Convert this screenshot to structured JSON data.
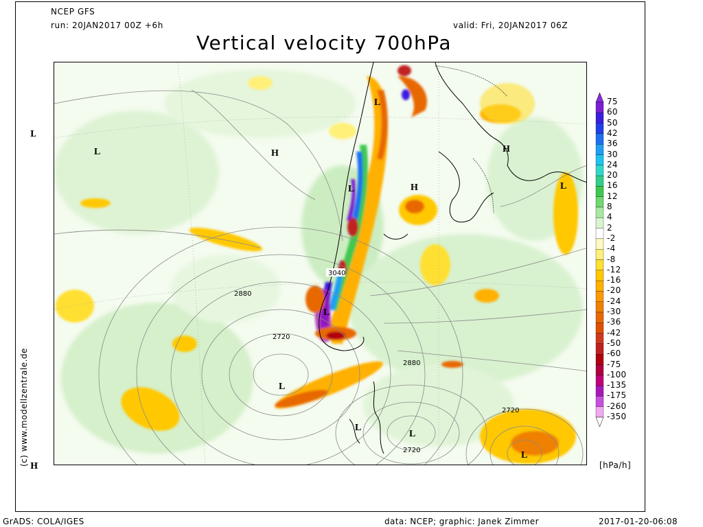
{
  "header": {
    "model": "NCEP GFS",
    "run": "run: 20JAN2017 00Z +6h",
    "valid": "valid: Fri, 20JAN2017 06Z",
    "title": "Vertical velocity 700hPa"
  },
  "vertical_credit": "(c) www.modellzentrale.de",
  "colorbar": {
    "unit": "[hPa/h]",
    "levels": [
      "75",
      "60",
      "50",
      "42",
      "36",
      "30",
      "24",
      "20",
      "16",
      "12",
      "8",
      "4",
      "2",
      "-2",
      "-4",
      "-8",
      "-12",
      "-16",
      "-20",
      "-24",
      "-30",
      "-36",
      "-42",
      "-50",
      "-60",
      "-75",
      "-100",
      "-135",
      "-175",
      "-260",
      "-350"
    ],
    "colors": [
      "#7a1fd6",
      "#3a1fe0",
      "#1f3fe8",
      "#1f6ff0",
      "#1f9ff5",
      "#1fc3f0",
      "#2fd8c8",
      "#2fd08a",
      "#3fc84f",
      "#6fd86f",
      "#a8e8a0",
      "#d8f5d0",
      "#ffffff",
      "#fff8c0",
      "#fff07a",
      "#ffe030",
      "#ffc800",
      "#ffb000",
      "#ff9800",
      "#f08000",
      "#e86800",
      "#e05000",
      "#d03820",
      "#c02020",
      "#b00010",
      "#b00040",
      "#c00078",
      "#a818b8",
      "#c850e0",
      "#f0a8f0"
    ],
    "tip_top": "#8a2be2",
    "tip_bottom": "#ffffff"
  },
  "map": {
    "pressure_labels": [
      {
        "name": "high",
        "text": "H"
      },
      {
        "name": "high",
        "text": "H"
      },
      {
        "name": "high",
        "text": "H"
      },
      {
        "name": "low",
        "text": "L"
      },
      {
        "name": "low",
        "text": "L"
      },
      {
        "name": "low",
        "text": "L"
      },
      {
        "name": "low",
        "text": "L"
      },
      {
        "name": "low",
        "text": "L"
      },
      {
        "name": "low",
        "text": "L"
      },
      {
        "name": "low",
        "text": "L"
      },
      {
        "name": "low",
        "text": "L"
      },
      {
        "name": "low",
        "text": "L"
      }
    ],
    "contour_values": [
      "3040",
      "2880",
      "2720",
      "2880",
      "2720",
      "2720"
    ]
  },
  "footer": {
    "left": "GrADS: COLA/IGES",
    "center": "data: NCEP; graphic: Janek Zimmer",
    "right": "2017-01-20-06:08"
  },
  "edge_marks": {
    "left_top": "L",
    "left_bottom": "H"
  }
}
